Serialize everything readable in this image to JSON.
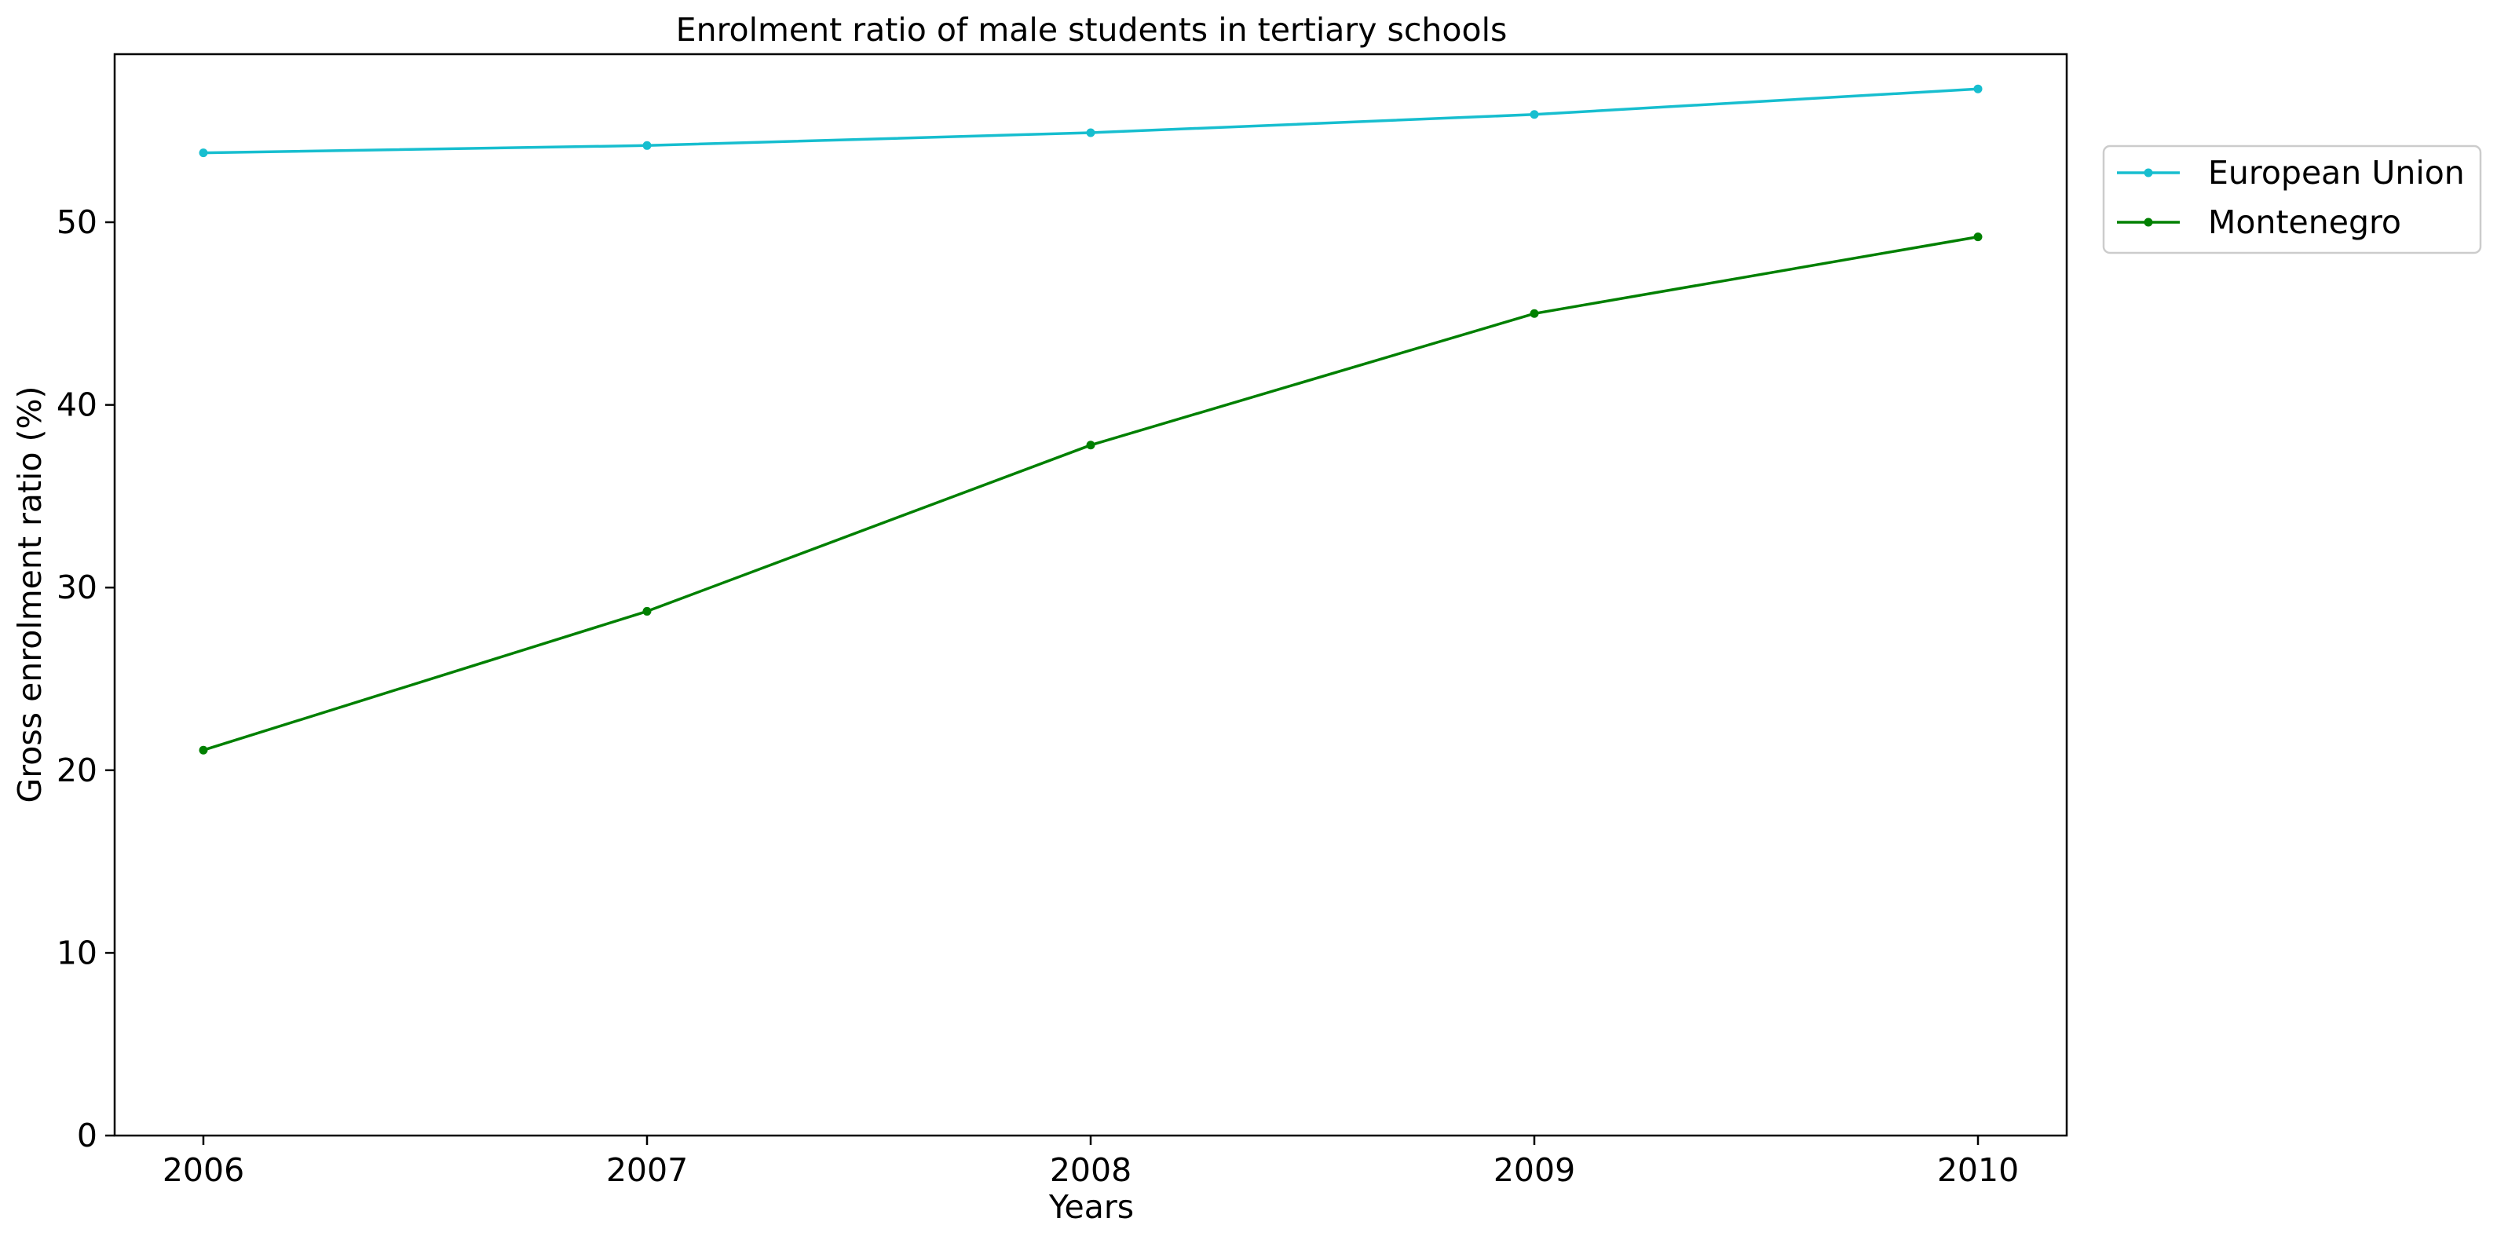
{
  "chart_data": {
    "type": "line",
    "title": "Enrolment ratio of male students in tertiary schools",
    "xlabel": "Years",
    "ylabel": "Gross enrolment ratio (%)",
    "x": [
      2006,
      2007,
      2008,
      2009,
      2010
    ],
    "x_tick_labels": [
      "2006",
      "2007",
      "2008",
      "2009",
      "2010"
    ],
    "xlim": [
      2005.8,
      2010.2
    ],
    "ylim": [
      0,
      59.2
    ],
    "y_ticks": [
      0,
      10,
      20,
      30,
      40,
      50
    ],
    "y_tick_labels": [
      "0",
      "10",
      "20",
      "30",
      "40",
      "50"
    ],
    "grid": false,
    "legend_position": "upper right, outside plot area",
    "series": [
      {
        "name": "European Union",
        "color": "#17becf",
        "marker": "dot",
        "values": [
          53.8,
          54.2,
          54.9,
          55.9,
          57.3
        ]
      },
      {
        "name": "Montenegro",
        "color": "#008000",
        "marker": "dot",
        "values": [
          21.1,
          28.7,
          37.8,
          45.0,
          49.2
        ]
      }
    ]
  }
}
